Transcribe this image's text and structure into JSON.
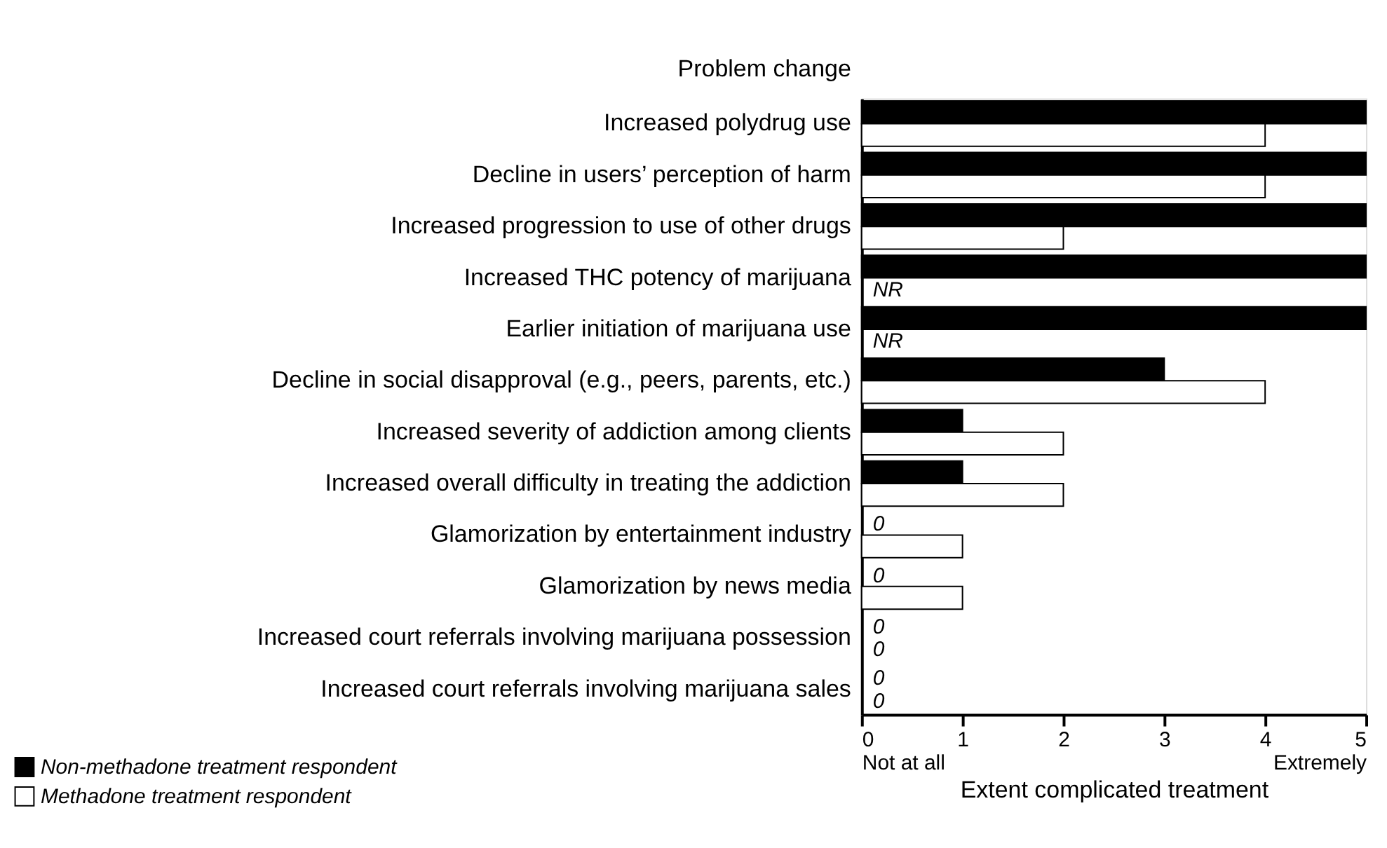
{
  "chart_data": {
    "type": "bar",
    "orientation": "horizontal",
    "ylabel": "Problem change",
    "xlabel": "Extent complicated treatment",
    "categories": [
      "Increased polydrug use",
      "Decline in users’ perception of harm",
      "Increased progression to use of other drugs",
      "Increased THC potency of marijuana",
      "Earlier initiation of marijuana use",
      "Decline in social disapproval (e.g., peers, parents, etc.)",
      "Increased severity of addiction among clients",
      "Increased overall difficulty in treating the addiction",
      "Glamorization by entertainment industry",
      "Glamorization by news media",
      "Increased court referrals involving marijuana possession",
      "Increased court referrals involving marijuana sales"
    ],
    "series": [
      {
        "name": "Non-methadone treatment respondent",
        "color": "#000000",
        "values": [
          5,
          5,
          5,
          5,
          5,
          3,
          1,
          1,
          0,
          0,
          0,
          0
        ],
        "value_labels": [
          null,
          null,
          null,
          null,
          null,
          null,
          null,
          null,
          "0",
          "0",
          "0",
          "0"
        ]
      },
      {
        "name": "Methadone treatment respondent",
        "color": "#ffffff",
        "values": [
          4,
          4,
          2,
          null,
          null,
          4,
          2,
          2,
          1,
          1,
          0,
          0
        ],
        "value_labels": [
          null,
          null,
          null,
          "NR",
          "NR",
          null,
          null,
          null,
          null,
          null,
          "0",
          "0"
        ]
      }
    ],
    "xlim": [
      0,
      5
    ],
    "xticks": [
      {
        "value": 0,
        "label": "0\nNot at all"
      },
      1,
      2,
      3,
      4,
      {
        "value": 5,
        "label": "5\nExtremely"
      }
    ],
    "grid": false,
    "legend": "bottom left"
  }
}
